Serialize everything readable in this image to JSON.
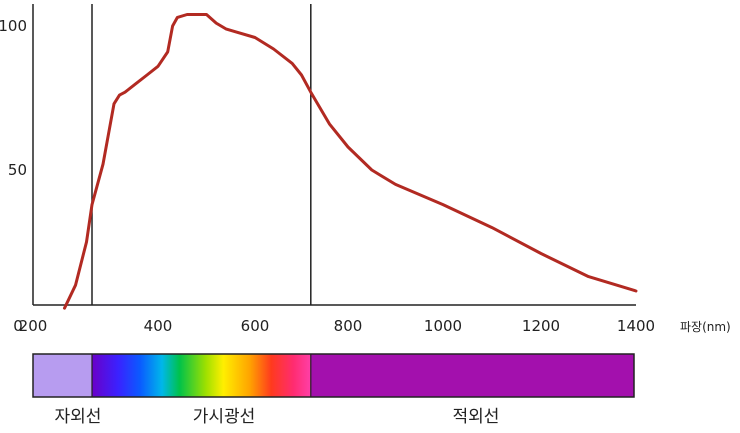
{
  "chart_data": {
    "type": "line",
    "title": "",
    "xlabel": "파장(nm)",
    "ylabel": "",
    "xlim": [
      0,
      1400
    ],
    "ylim": [
      0,
      105
    ],
    "x_ticks": [
      {
        "value": 0,
        "label": "0"
      },
      {
        "value": 200,
        "label": "200"
      },
      {
        "value": 400,
        "label": "400"
      },
      {
        "value": 600,
        "label": "600"
      },
      {
        "value": 800,
        "label": "800"
      },
      {
        "value": 1000,
        "label": "1000"
      },
      {
        "value": 1200,
        "label": "1200"
      },
      {
        "value": 1400,
        "label": "1400"
      }
    ],
    "y_ticks": [
      {
        "value": 50,
        "label": "50"
      },
      {
        "value": 100,
        "label": "100"
      }
    ],
    "boundaries": [
      280,
      720
    ],
    "series": [
      {
        "color": "#b22a22",
        "x": [
          230,
          250,
          270,
          280,
          300,
          320,
          330,
          340,
          360,
          380,
          400,
          420,
          430,
          440,
          460,
          480,
          500,
          520,
          540,
          560,
          600,
          640,
          680,
          700,
          720,
          760,
          800,
          850,
          900,
          1000,
          1100,
          1200,
          1300,
          1400
        ],
        "y": [
          2,
          10,
          25,
          38,
          52,
          73,
          76,
          77,
          80,
          83,
          86,
          91,
          100,
          103,
          104,
          104,
          104,
          101,
          99,
          98,
          96,
          92,
          87,
          83,
          77,
          66,
          58,
          50,
          45,
          38,
          30,
          21,
          13,
          8
        ]
      }
    ],
    "spectrum_bands": [
      {
        "label": "자외선",
        "from": 0,
        "to": 280,
        "color": "#b79cf0"
      },
      {
        "label": "가시광선",
        "from": 280,
        "to": 720,
        "color": "rainbow"
      },
      {
        "label": "적외선",
        "from": 720,
        "to": 1400,
        "color": "#a310ad"
      }
    ]
  }
}
